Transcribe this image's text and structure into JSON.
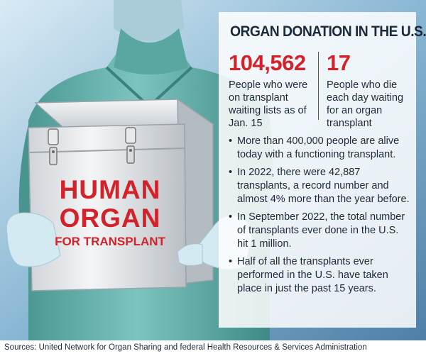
{
  "box_label": {
    "line1": "HUMAN",
    "line2": "ORGAN",
    "line3": "FOR TRANSPLANT"
  },
  "panel": {
    "title": "ORGAN DONATION IN THE U.S.",
    "stats": [
      {
        "value": "104,562",
        "description": "People who were on transplant waiting lists as of Jan. 15"
      },
      {
        "value": "17",
        "description": "People who die each day waiting for an organ transplant"
      }
    ],
    "bullets": [
      "More than 400,000 people are alive today with a functioning transplant.",
      "In 2022, there were 42,887 transplants, a record number and almost 4% more than the year before.",
      "In September 2022, the total number of transplants ever done in the U.S. hit 1 million.",
      "Half of all the transplants ever performed in the U.S. have taken place in just the past 15 years."
    ]
  },
  "sources": "Sources: United Network for Organ Sharing and federal Health Resources & Services Administration",
  "colors": {
    "accent_red": "#d3222a",
    "text_dark": "#1c2a3a",
    "scrubs": "#6fb8b4",
    "glove": "#d3eaf3",
    "background": "#8ab8d4"
  },
  "icons": [
    "surgeon-illustration",
    "organ-cooler-box",
    "latch-icon"
  ]
}
